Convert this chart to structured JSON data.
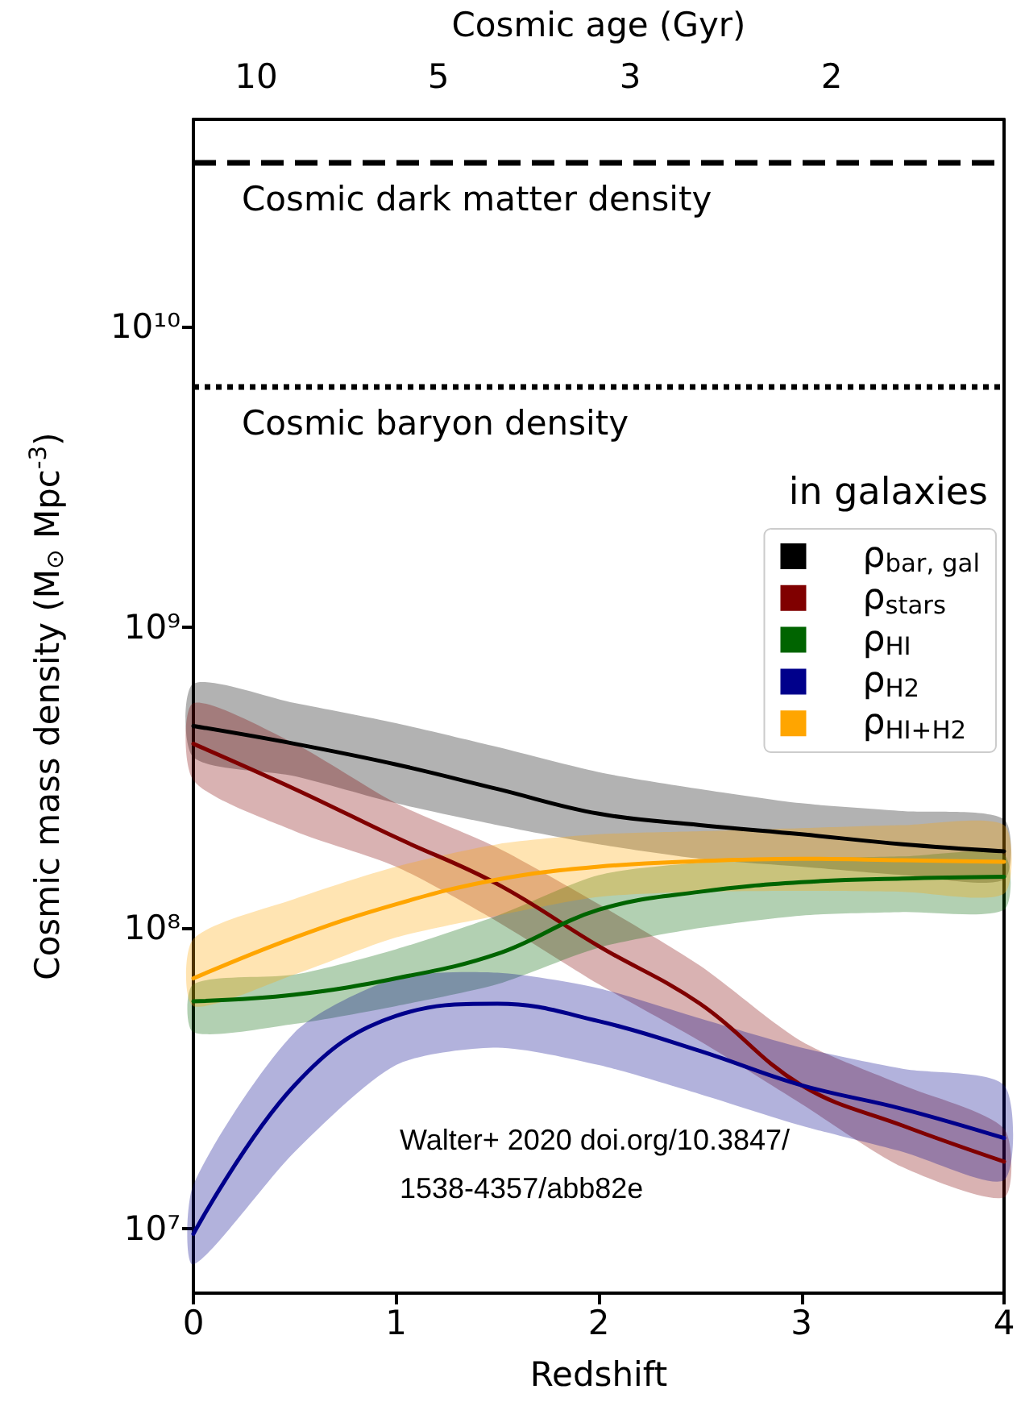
{
  "chart_data": {
    "type": "line",
    "xlabel": "Redshift",
    "ylabel": "Cosmic mass density (M$_{⊙}$ Mpc$^{-3}$)",
    "x2label": "Cosmic age (Gyr)",
    "legend_title": "in galaxies",
    "x": [
      0,
      0.5,
      1,
      1.5,
      2,
      2.5,
      3,
      3.5,
      4
    ],
    "xlim": [
      0,
      4
    ],
    "xticks": [
      0,
      1,
      2,
      3,
      4
    ],
    "ylim": [
      6100000,
      49000000000
    ],
    "log": "y",
    "yticks": [
      {
        "value": 10000000,
        "label": "10⁷"
      },
      {
        "value": 100000000,
        "label": "10⁸"
      },
      {
        "value": 1000000000,
        "label": "10⁹"
      },
      {
        "value": 10000000000,
        "label": "10¹⁰"
      }
    ],
    "series": [
      {
        "name": "ρ$_{bar, gal}$",
        "color": "#000000",
        "values": [
          470000000,
          410000000,
          350000000,
          290000000,
          240000000,
          220000000,
          205000000,
          190000000,
          180000000
        ],
        "upper": [
          650000000,
          560000000,
          480000000,
          400000000,
          330000000,
          290000000,
          260000000,
          245000000,
          230000000
        ],
        "lower": [
          370000000,
          320000000,
          260000000,
          220000000,
          190000000,
          170000000,
          160000000,
          150000000,
          145000000
        ]
      },
      {
        "name": "ρ$_{stars}$",
        "color": "#800000",
        "values": [
          410000000,
          290000000,
          200000000,
          140000000,
          87000000,
          56000000,
          30000000,
          22000000,
          16700000
        ],
        "upper": [
          560000000,
          410000000,
          260000000,
          185000000,
          120000000,
          75000000,
          42000000,
          30000000,
          21500000
        ],
        "lower": [
          310000000,
          210000000,
          160000000,
          105000000,
          65000000,
          42000000,
          26000000,
          16000000,
          12700000
        ]
      },
      {
        "name": "ρ$_{HI}$",
        "color": "#006400",
        "values": [
          57000000,
          60000000,
          68000000,
          82000000,
          115000000,
          132000000,
          142000000,
          146000000,
          148000000
        ],
        "upper": [
          65000000,
          70000000,
          85000000,
          110000000,
          150000000,
          165000000,
          170000000,
          173000000,
          175000000
        ],
        "lower": [
          45000000,
          48000000,
          55000000,
          65000000,
          86000000,
          100000000,
          110000000,
          113000000,
          115000000
        ]
      },
      {
        "name": "ρ$_{H2}$",
        "color": "#00008b",
        "values": [
          9600000,
          30000000,
          51000000,
          56000000,
          49000000,
          39000000,
          30000000,
          25000000,
          20000000
        ],
        "upper": [
          14000000,
          45000000,
          68000000,
          71000000,
          63000000,
          50000000,
          40000000,
          34000000,
          30000000
        ],
        "lower": [
          7600000,
          18000000,
          35000000,
          40000000,
          35000000,
          28000000,
          22000000,
          18000000,
          14500000
        ]
      },
      {
        "name": "ρ$_{HI+H2}$",
        "color": "#ffa500",
        "values": [
          68000000,
          93000000,
          120000000,
          145000000,
          160000000,
          167000000,
          170000000,
          168000000,
          166000000
        ],
        "upper": [
          92000000,
          125000000,
          160000000,
          190000000,
          205000000,
          210000000,
          215000000,
          220000000,
          220000000
        ],
        "lower": [
          55000000,
          70000000,
          93000000,
          110000000,
          127000000,
          132000000,
          133000000,
          132000000,
          130000000
        ]
      }
    ],
    "ref_lines": [
      {
        "axis": "y",
        "value": 35000000000,
        "label": "Cosmic dark matter density",
        "color": "#000000",
        "line_style": "dashed"
      },
      {
        "axis": "y",
        "value": 6300000000,
        "label": "Cosmic baryon density",
        "color": "#000000",
        "line_style": "dotted"
      }
    ],
    "annotations": [
      "Walter+ 2020 doi.org/10.3847/1538-4357/abb82e",
      "10",
      "5",
      "3",
      "2"
    ],
    "legend": "right",
    "marker": "none",
    "line_style": "solid",
    "grid": false
  }
}
